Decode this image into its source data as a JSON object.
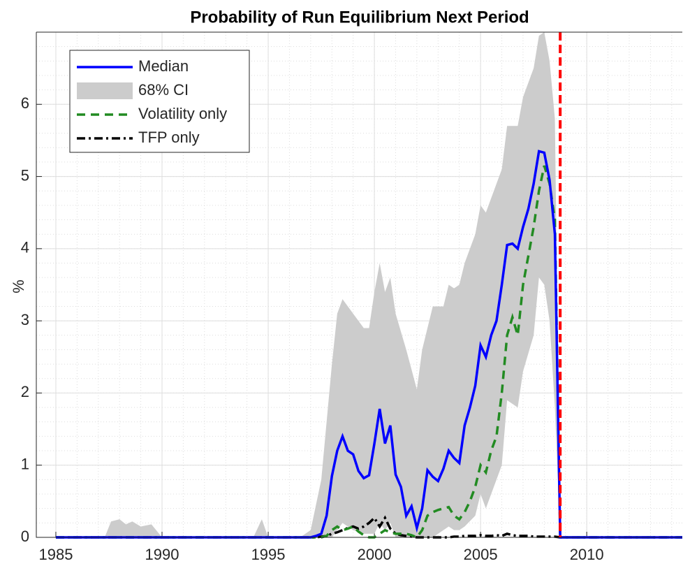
{
  "chart_data": {
    "type": "line",
    "title": "Probability of Run Equilibrium Next Period",
    "y_label": "%",
    "xlim": [
      1984.08,
      2014.5
    ],
    "ylim": [
      0,
      7
    ],
    "xticks": [
      1985,
      1990,
      1995,
      2000,
      2005,
      2010
    ],
    "yticks": [
      0,
      1,
      2,
      3,
      4,
      5,
      6
    ],
    "grid": true,
    "minor_grid": true,
    "legend": "upper-left",
    "x": [
      1985,
      1997,
      1997.25,
      1997.5,
      1997.75,
      1998,
      1998.25,
      1998.5,
      1998.75,
      1999,
      1999.25,
      1999.5,
      1999.75,
      2000,
      2000.25,
      2000.5,
      2000.75,
      2001,
      2001.25,
      2001.5,
      2001.75,
      2002,
      2002.25,
      2002.5,
      2002.75,
      2003,
      2003.25,
      2003.5,
      2003.75,
      2004,
      2004.25,
      2004.5,
      2004.75,
      2005,
      2005.25,
      2005.5,
      2005.75,
      2006,
      2006.25,
      2006.5,
      2006.75,
      2007,
      2007.25,
      2007.5,
      2007.75,
      2008,
      2008.25,
      2008.5,
      2008.75,
      2014.5
    ],
    "band": {
      "name": "68% CI",
      "color": "#cccccc",
      "x": [
        1985,
        1987.3,
        1987.6,
        1988,
        1988.3,
        1988.6,
        1989,
        1989.5,
        1990,
        1994.3,
        1994.7,
        1995,
        1996.5,
        1997,
        1997.5,
        1998,
        1998.25,
        1998.5,
        1999,
        1999.5,
        1999.75,
        2000,
        2000.25,
        2000.5,
        2000.75,
        2001,
        2001.5,
        2002,
        2002.25,
        2002.75,
        2003,
        2003.25,
        2003.5,
        2003.75,
        2004,
        2004.25,
        2004.75,
        2005,
        2005.25,
        2005.75,
        2006,
        2006.25,
        2006.75,
        2007,
        2007.5,
        2007.75,
        2008,
        2008.25,
        2008.5,
        2008.75,
        2014.5
      ],
      "lower": [
        0,
        0,
        0,
        0,
        0,
        0,
        0,
        0,
        0,
        0,
        0,
        0,
        0,
        0,
        0,
        0,
        0.1,
        0.2,
        0.1,
        0.05,
        0.05,
        0.05,
        0.2,
        0.1,
        0.2,
        0,
        0,
        0,
        0,
        0,
        0.05,
        0.1,
        0.15,
        0.1,
        0.1,
        0.15,
        0.3,
        0.6,
        0.4,
        0.8,
        1.0,
        1.9,
        1.8,
        2.3,
        2.8,
        3.6,
        3.5,
        3.0,
        1.8,
        0,
        0
      ],
      "upper": [
        0,
        0,
        0.22,
        0.25,
        0.18,
        0.22,
        0.15,
        0.18,
        0,
        0,
        0.25,
        0,
        0,
        0.1,
        0.8,
        2.4,
        3.1,
        3.3,
        3.1,
        2.9,
        2.9,
        3.4,
        3.8,
        3.4,
        3.6,
        3.1,
        2.6,
        2.05,
        2.6,
        3.2,
        3.2,
        3.2,
        3.5,
        3.45,
        3.5,
        3.8,
        4.2,
        4.6,
        4.5,
        4.9,
        5.1,
        5.7,
        5.7,
        6.1,
        6.5,
        6.95,
        7.0,
        6.6,
        5.8,
        0,
        0
      ]
    },
    "series": [
      {
        "name": "Median",
        "color": "#0000ff",
        "dash": "solid",
        "values": [
          0,
          0,
          0.02,
          0.05,
          0.3,
          0.85,
          1.2,
          1.4,
          1.2,
          1.15,
          0.92,
          0.82,
          0.86,
          1.3,
          1.78,
          1.3,
          1.55,
          0.87,
          0.7,
          0.3,
          0.43,
          0.13,
          0.4,
          0.93,
          0.84,
          0.78,
          0.95,
          1.2,
          1.1,
          1.03,
          1.55,
          1.8,
          2.1,
          2.66,
          2.5,
          2.8,
          3.0,
          3.5,
          4.05,
          4.07,
          4.0,
          4.3,
          4.55,
          4.9,
          5.35,
          5.33,
          4.95,
          4.2,
          0,
          0
        ]
      },
      {
        "name": "Volatility only",
        "color": "#228b22",
        "dash": "dashed",
        "values": [
          0,
          0,
          0,
          0,
          0.02,
          0.1,
          0.15,
          0.1,
          0.12,
          0.15,
          0.08,
          0.03,
          0,
          0,
          0.05,
          0.1,
          0.07,
          0.05,
          0.05,
          0.05,
          0.03,
          0,
          0.1,
          0.3,
          0.35,
          0.38,
          0.4,
          0.42,
          0.3,
          0.25,
          0.35,
          0.5,
          0.7,
          1.0,
          0.9,
          1.2,
          1.4,
          2.0,
          2.8,
          3.05,
          2.8,
          3.5,
          3.9,
          4.3,
          4.8,
          5.15,
          4.9,
          4.4,
          0,
          0
        ]
      },
      {
        "name": "TFP only",
        "color": "#000000",
        "dash": "dashdot",
        "values": [
          0,
          0,
          0,
          0.01,
          0.02,
          0.05,
          0.07,
          0.1,
          0.13,
          0.15,
          0.12,
          0.15,
          0.2,
          0.27,
          0.15,
          0.27,
          0.12,
          0.05,
          0.03,
          0.02,
          0.01,
          0,
          0,
          0,
          0,
          0,
          0,
          0,
          0.01,
          0.01,
          0.02,
          0.02,
          0.02,
          0.03,
          0.02,
          0.02,
          0.03,
          0.02,
          0.05,
          0.03,
          0.02,
          0.02,
          0.02,
          0.01,
          0.01,
          0.01,
          0.01,
          0.01,
          0,
          0
        ]
      }
    ],
    "vline": {
      "x": 2008.75,
      "color": "#ff0000"
    }
  }
}
